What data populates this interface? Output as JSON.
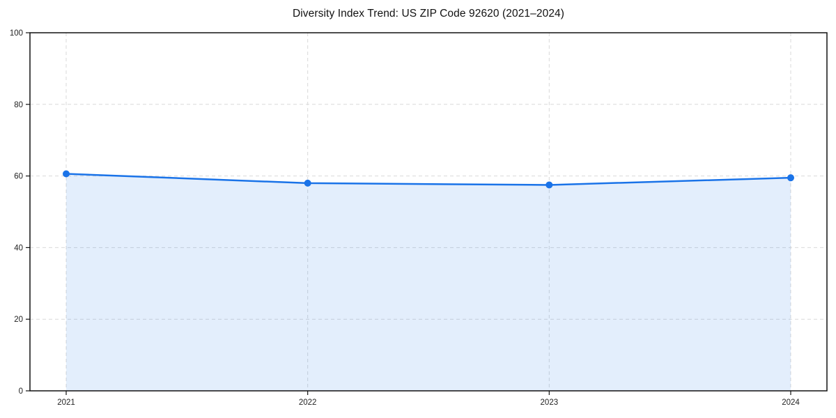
{
  "chart_data": {
    "type": "area",
    "title": "Diversity Index Trend: US ZIP Code 92620 (2021–2024)",
    "categories": [
      "2021",
      "2022",
      "2023",
      "2024"
    ],
    "series": [
      {
        "name": "Diversity Index",
        "values": [
          60.6,
          58.0,
          57.5,
          59.5
        ]
      }
    ],
    "xlabel": "",
    "ylabel": "",
    "ylim": [
      0,
      100
    ],
    "yticks": [
      0,
      20,
      40,
      60,
      80,
      100
    ],
    "grid": true,
    "grid_style": "dashed",
    "legend_position": "none",
    "colors": {
      "line": "#1a73e8",
      "marker": "#1a73e8",
      "fill": "rgba(26,115,232,0.12)",
      "grid": "#d9d9d9",
      "spine": "#111111",
      "tick_label": "#222222",
      "title": "#111111",
      "background": "#ffffff"
    }
  }
}
